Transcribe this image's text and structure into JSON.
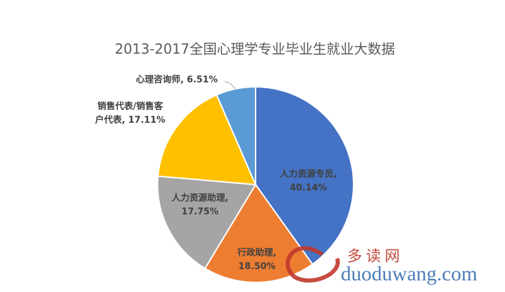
{
  "chart_data": {
    "type": "pie",
    "title": "2013-2017全国心理学专业毕业生就业大数据",
    "categories": [
      "人力资源专员",
      "行政助理",
      "人力资源助理",
      "销售代表/销售客户代表",
      "心理咨询师"
    ],
    "values": [
      40.14,
      18.5,
      17.75,
      17.11,
      6.51
    ],
    "value_labels": [
      [
        "人力资源专员,",
        "40.14%"
      ],
      [
        "行政助理,",
        "18.50%"
      ],
      [
        "人力资源助理,",
        "17.75%"
      ],
      [
        "销售代表/销售客",
        "户代表, 17.11%"
      ],
      [
        "心理咨询师, 6.51%"
      ]
    ],
    "colors": [
      "#4472c4",
      "#ed7d31",
      "#a5a5a5",
      "#ffc000",
      "#5b9bd5"
    ],
    "watermark": "多 读 网",
    "watermark_url": "duoduwang.com"
  }
}
